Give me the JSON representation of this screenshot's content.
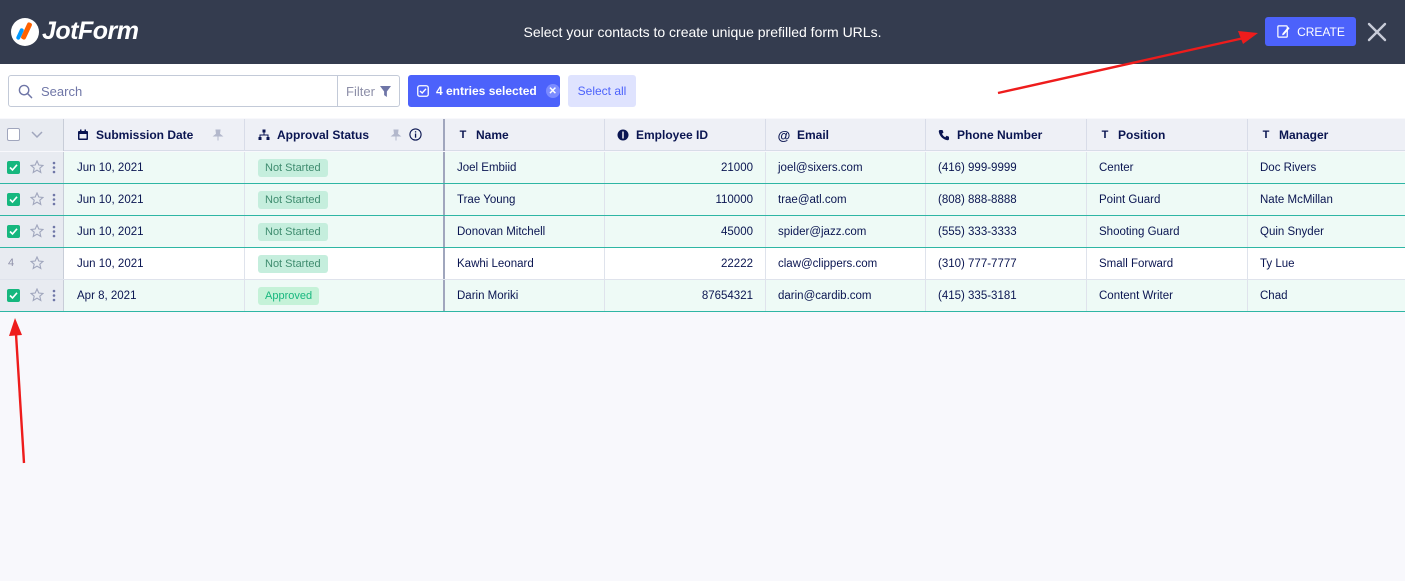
{
  "header": {
    "logo_text": "JotForm",
    "message": "Select your contacts to create unique prefilled form URLs.",
    "create_label": "CREATE"
  },
  "toolbar": {
    "search_placeholder": "Search",
    "filter_label": "Filter",
    "entries_selected_label": "4 entries selected",
    "select_all_label": "Select all"
  },
  "columns": [
    {
      "label": "Submission Date",
      "icon": "calendar-icon"
    },
    {
      "label": "Approval Status",
      "icon": "flow-icon"
    },
    {
      "label": "Name",
      "icon": "text-icon"
    },
    {
      "label": "Employee ID",
      "icon": "number-icon"
    },
    {
      "label": "Email",
      "icon": "at-icon"
    },
    {
      "label": "Phone Number",
      "icon": "phone-icon"
    },
    {
      "label": "Position",
      "icon": "text-icon"
    },
    {
      "label": "Manager",
      "icon": "text-icon"
    }
  ],
  "rows": [
    {
      "selected": true,
      "row_number": "",
      "date": "Jun 10, 2021",
      "status": "Not Started",
      "name": "Joel Embiid",
      "employee_id": "21000",
      "email": "joel@sixers.com",
      "phone": "(416) 999-9999",
      "position": "Center",
      "manager": "Doc Rivers"
    },
    {
      "selected": true,
      "row_number": "",
      "date": "Jun 10, 2021",
      "status": "Not Started",
      "name": "Trae Young",
      "employee_id": "110000",
      "email": "trae@atl.com",
      "phone": "(808) 888-8888",
      "position": "Point Guard",
      "manager": "Nate McMillan"
    },
    {
      "selected": true,
      "row_number": "",
      "date": "Jun 10, 2021",
      "status": "Not Started",
      "name": "Donovan Mitchell",
      "employee_id": "45000",
      "email": "spider@jazz.com",
      "phone": "(555) 333-3333",
      "position": "Shooting Guard",
      "manager": "Quin Snyder"
    },
    {
      "selected": false,
      "row_number": "4",
      "date": "Jun 10, 2021",
      "status": "Not Started",
      "name": "Kawhi Leonard",
      "employee_id": "22222",
      "email": "claw@clippers.com",
      "phone": "(310) 777-7777",
      "position": "Small Forward",
      "manager": "Ty Lue"
    },
    {
      "selected": true,
      "row_number": "",
      "date": "Apr 8, 2021",
      "status": "Approved",
      "name": "Darin Moriki",
      "employee_id": "87654321",
      "email": "darin@cardib.com",
      "phone": "(415) 335-3181",
      "position": "Content Writer",
      "manager": "Chad"
    }
  ],
  "colors": {
    "topbar": "#343c4f",
    "accent": "#4c62fb",
    "selected_row": "#eefaf6",
    "check_green": "#16b77e",
    "annotation_arrow": "#ee1c1c"
  }
}
